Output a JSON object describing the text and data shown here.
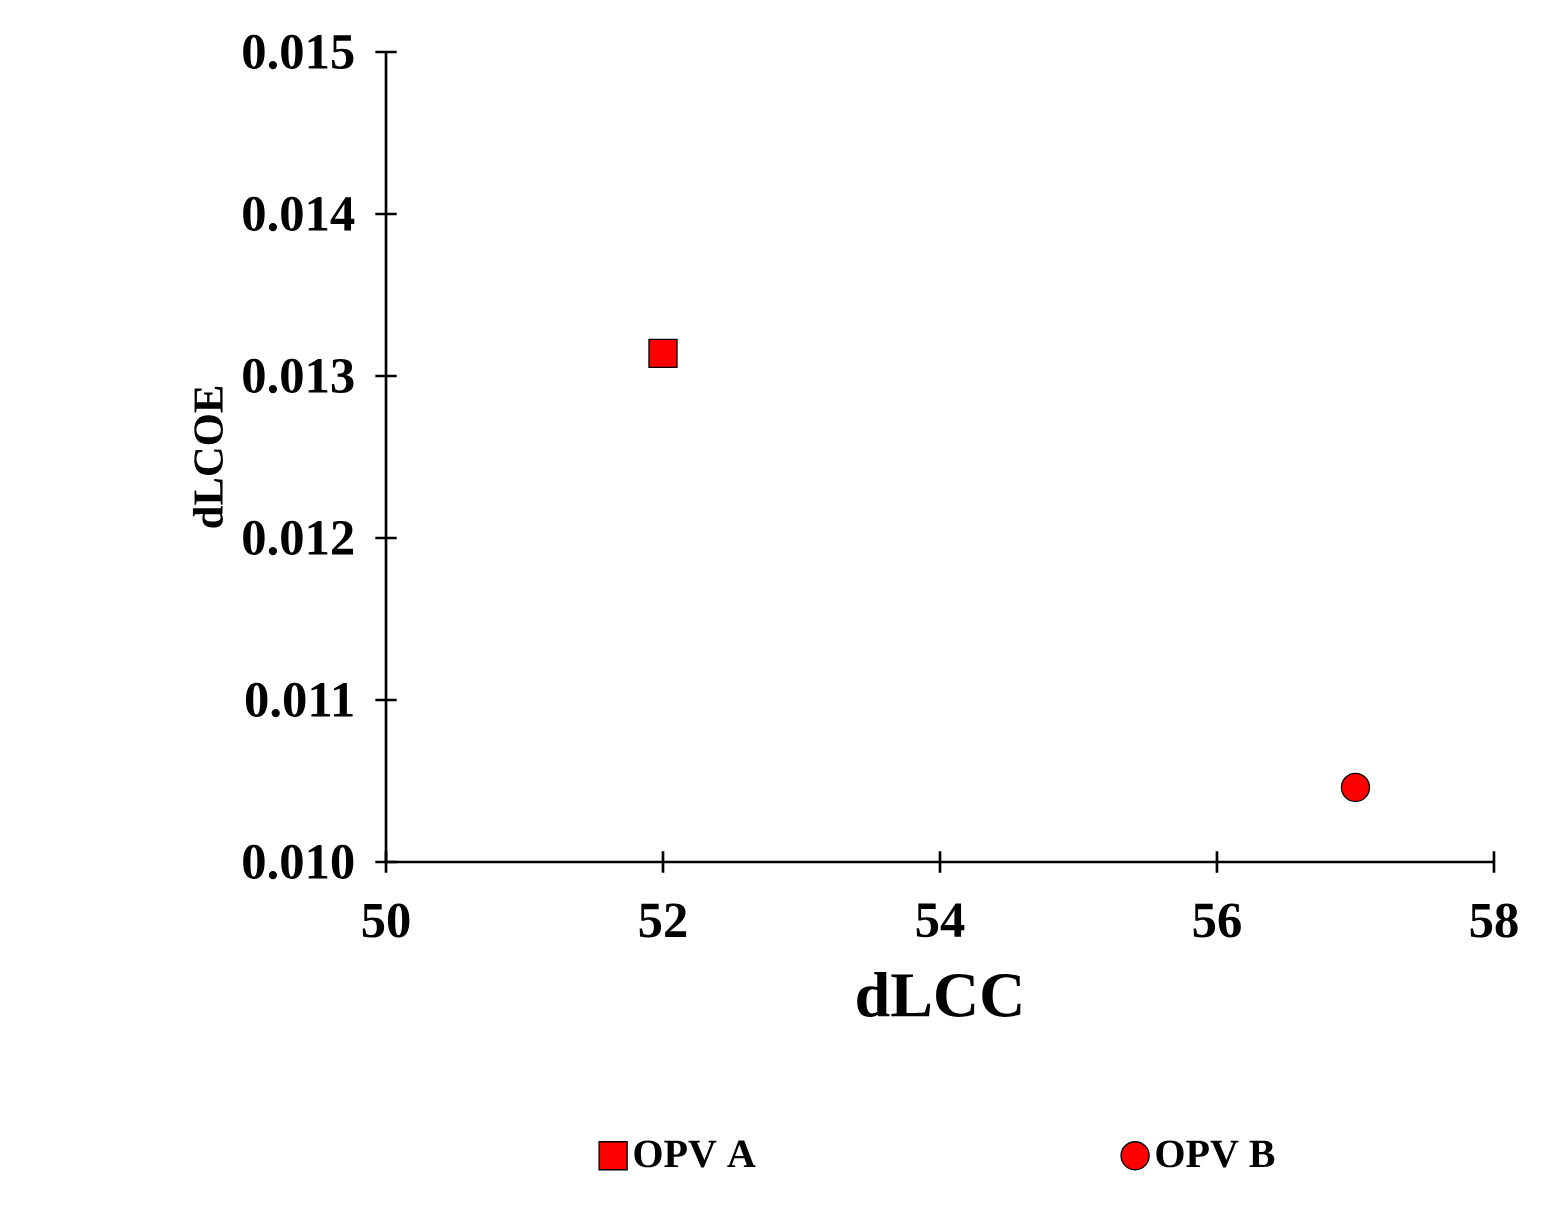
{
  "chart_data": {
    "type": "scatter",
    "xlabel": "dLCC",
    "ylabel": "dLCOE",
    "xlim": [
      50,
      58
    ],
    "xticks": [
      50,
      52,
      54,
      56,
      58
    ],
    "ylim": [
      0.01,
      0.015
    ],
    "yticks": [
      {
        "value": 0.01,
        "label": "0.010"
      },
      {
        "value": 0.011,
        "label": "0.011"
      },
      {
        "value": 0.012,
        "label": "0.012"
      },
      {
        "value": 0.013,
        "label": "0.013"
      },
      {
        "value": 0.014,
        "label": "0.014"
      },
      {
        "value": 0.015,
        "label": "0.015"
      }
    ],
    "legend": "bottom",
    "series": [
      {
        "name": "OPV A",
        "color": "#ff0000",
        "marker": "square",
        "x": [
          52
        ],
        "values": [
          0.01314
        ]
      },
      {
        "name": "OPV B",
        "color": "#ff0000",
        "marker": "circle",
        "x": [
          57
        ],
        "values": [
          0.01046
        ]
      }
    ]
  }
}
